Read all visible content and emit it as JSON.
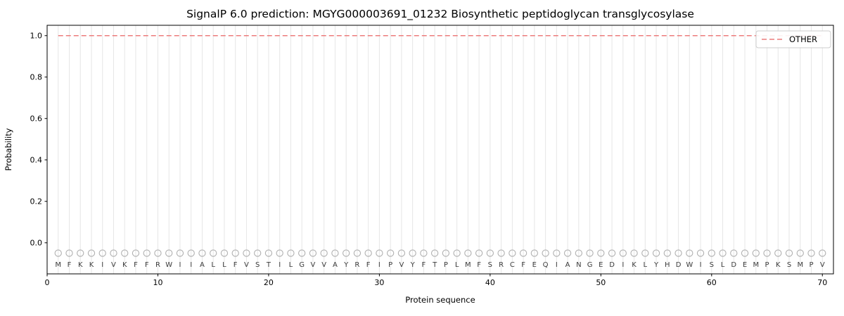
{
  "chart_data": {
    "type": "line",
    "title": "SignalP 6.0 prediction: MGYG000003691_01232 Biosynthetic peptidoglycan transglycosylase",
    "xlabel": "Protein sequence",
    "ylabel": "Probability",
    "xlim": [
      0,
      71
    ],
    "ylim": [
      -0.15,
      1.05
    ],
    "x_ticks": [
      0,
      10,
      20,
      30,
      40,
      50,
      60,
      70
    ],
    "y_ticks": [
      0.0,
      0.2,
      0.4,
      0.6,
      0.8,
      1.0
    ],
    "grid": "vertical-gridline-per-residue",
    "legend": {
      "position": "upper-right",
      "entries": [
        {
          "label": "OTHER",
          "color": "#ec7c7c",
          "style": "dashed"
        }
      ]
    },
    "series": [
      {
        "name": "OTHER",
        "style": "dashed",
        "color": "#ec7c7c",
        "y_constant": 1.0,
        "x_start": 1,
        "x_end": 70
      }
    ],
    "sequence": "MFKKIVKFFRWIIALLFVSTILGVVAYRFIPVYFTPLMFSRCFEQIANGEDIKLYHDWISLDEMPKSMPV",
    "marker_y": -0.05,
    "letter_y": -0.105,
    "colors": {
      "grid": "#e6e6e6",
      "marker": "#b0b0b0",
      "letter": "#3c3c3c",
      "axis": "#000000",
      "other_line": "#ec7c7c",
      "legend_border": "#cccccc"
    }
  }
}
